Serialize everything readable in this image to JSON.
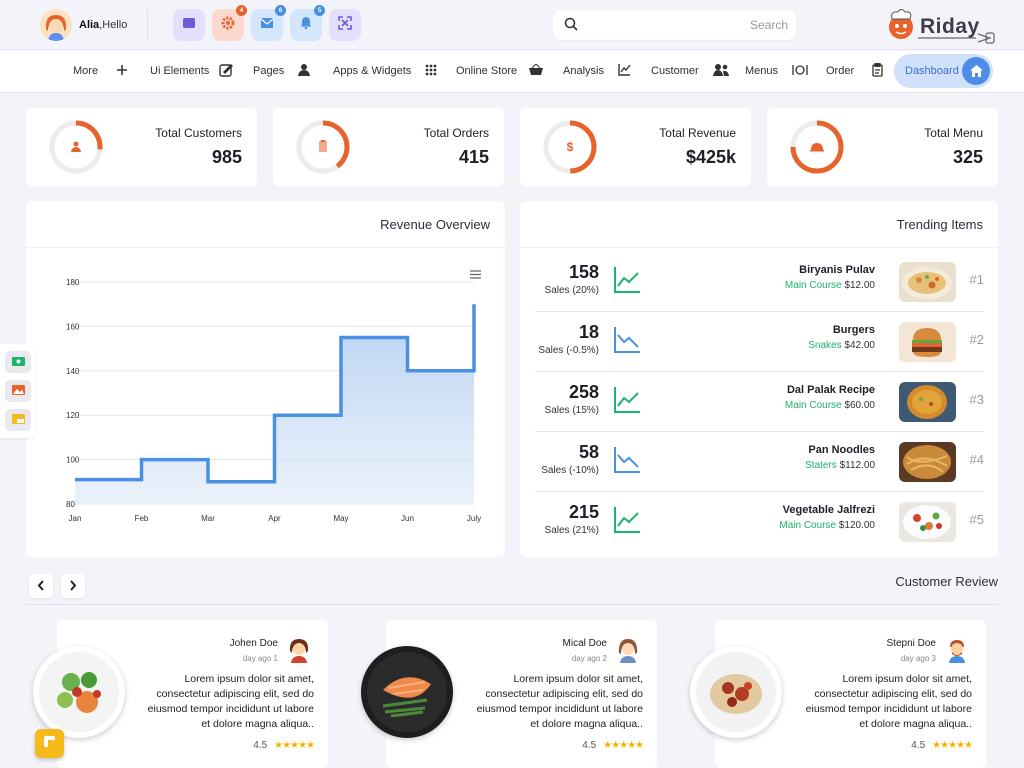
{
  "user": {
    "name": "Alia",
    "greeting": ",Hello"
  },
  "quick_actions": [
    {
      "icon": "square-icon",
      "badge": null
    },
    {
      "icon": "gear-icon",
      "badge": "4"
    },
    {
      "icon": "mail-icon",
      "badge": "6"
    },
    {
      "icon": "bell-icon",
      "badge": "5"
    },
    {
      "icon": "fullscreen-icon",
      "badge": null
    }
  ],
  "search": {
    "placeholder": "Search"
  },
  "brand": {
    "name": "Riday"
  },
  "nav": {
    "items": [
      {
        "label": "More",
        "icon": "plus-icon"
      },
      {
        "label": "Ui Elements",
        "icon": "edit-icon"
      },
      {
        "label": "Pages",
        "icon": "user-icon"
      },
      {
        "label": "Apps & Widgets",
        "icon": "grid-icon"
      },
      {
        "label": "Online Store",
        "icon": "basket-icon"
      },
      {
        "label": "Analysis",
        "icon": "chart-line-icon"
      },
      {
        "label": "Customer",
        "icon": "users-icon"
      },
      {
        "label": "Menus",
        "icon": "dish-icon"
      },
      {
        "label": "Order",
        "icon": "clipboard-icon"
      }
    ],
    "dashboard_label": "Dashboard"
  },
  "stats": [
    {
      "label": "Total Customers",
      "value": "985",
      "icon": "user-icon"
    },
    {
      "label": "Total Orders",
      "value": "415",
      "icon": "clipboard-icon"
    },
    {
      "label": "Total Revenue",
      "value": "$425k",
      "icon": "dollar-icon"
    },
    {
      "label": "Total Menu",
      "value": "325",
      "icon": "dish-icon"
    }
  ],
  "revenue": {
    "title": "Revenue Overview"
  },
  "chart_data": {
    "type": "area",
    "title": "Revenue Overview",
    "categories": [
      "Jan",
      "Feb",
      "Mar",
      "Apr",
      "May",
      "Jun",
      "July"
    ],
    "series": [
      {
        "values": [
          91,
          100,
          90,
          120,
          155,
          140,
          170
        ]
      }
    ],
    "ylim": [
      80,
      180
    ],
    "yticks": [
      80,
      100,
      120,
      140,
      160,
      180
    ],
    "grid": true,
    "line_color": "#4a90e2"
  },
  "trending": {
    "title": "Trending Items",
    "items": [
      {
        "count": "158",
        "sales": "Sales (20%)",
        "trend": "up",
        "name": "Biryanis Pulav",
        "category": "Main Course",
        "price": "$12.00",
        "rank": "#1"
      },
      {
        "count": "18",
        "sales": "Sales (-0.5%)",
        "trend": "down",
        "name": "Burgers",
        "category": "Snakes",
        "price": "$42.00",
        "rank": "#2"
      },
      {
        "count": "258",
        "sales": "Sales (15%)",
        "trend": "up",
        "name": "Dal Palak Recipe",
        "category": "Main Course",
        "price": "$60.00",
        "rank": "#3"
      },
      {
        "count": "58",
        "sales": "Sales (-10%)",
        "trend": "down",
        "name": "Pan Noodles",
        "category": "Staters",
        "price": "$112.00",
        "rank": "#4"
      },
      {
        "count": "215",
        "sales": "Sales (21%)",
        "trend": "up",
        "name": "Vegetable Jalfrezi",
        "category": "Main Course",
        "price": "$120.00",
        "rank": "#5"
      }
    ]
  },
  "reviews": {
    "title": "Customer Review",
    "items": [
      {
        "name": "Johen Doe",
        "day": "day ago 1",
        "text": "Lorem ipsum dolor sit amet, consectetur adipiscing elit, sed do eiusmod tempor incididunt ut labore et dolore magna aliqua..",
        "rating": "4.5"
      },
      {
        "name": "Mical Doe",
        "day": "day ago 2",
        "text": "Lorem ipsum dolor sit amet, consectetur adipiscing elit, sed do eiusmod tempor incididunt ut labore et dolore magna aliqua..",
        "rating": "4.5"
      },
      {
        "name": "Stepni Doe",
        "day": "day ago 3",
        "text": "Lorem ipsum dolor sit amet, consectetur adipiscing elit, sed do eiusmod tempor incididunt ut labore et dolore magna aliqua..",
        "rating": "4.5"
      }
    ]
  },
  "colors": {
    "accent": "#e8632c",
    "primary": "#4a90e2",
    "green": "#1cb36b"
  }
}
